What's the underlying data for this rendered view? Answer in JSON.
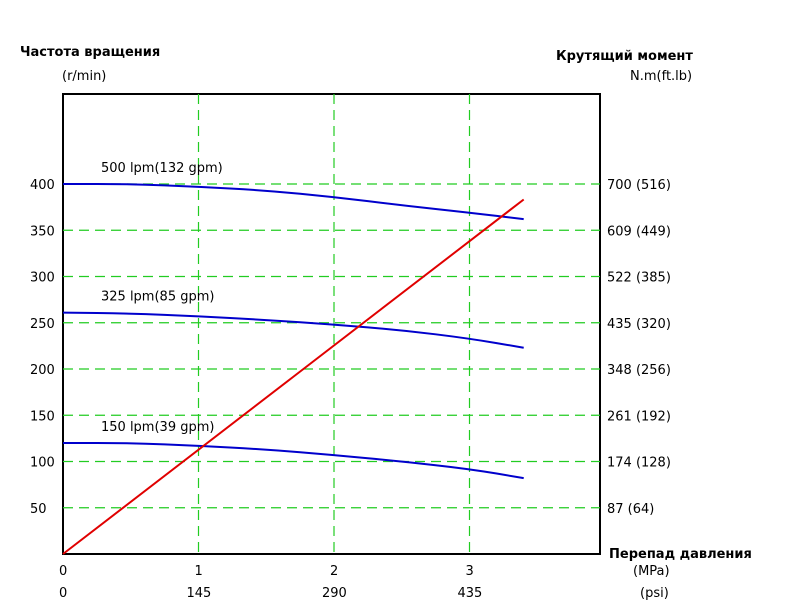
{
  "chart_data": {
    "type": "line",
    "left_axis": {
      "title": "Частота вращения",
      "unit": "(r/min)",
      "ticks": [
        50,
        100,
        150,
        200,
        250,
        300,
        350,
        400
      ],
      "range": [
        0,
        500
      ]
    },
    "right_axis": {
      "title": "Крутящий момент",
      "unit": "N.m(ft.lb)",
      "tick_labels": [
        "87 (64)",
        "174 (128)",
        "261 (192)",
        "348 (256)",
        "435 (320)",
        "522 (385)",
        "609 (449)",
        "700 (516)"
      ],
      "range": [
        0,
        870
      ]
    },
    "x_axis": {
      "title": "Перепад давления",
      "unit_primary": "(MPa)",
      "unit_secondary": "(psi)",
      "ticks_primary": [
        "0",
        "1",
        "2",
        "3"
      ],
      "ticks_secondary": [
        "0",
        "145",
        "290",
        "435"
      ],
      "range": [
        0,
        4
      ]
    },
    "grid": true,
    "series": [
      {
        "name": "500 lpm(132 gpm)",
        "axis": "left",
        "color": "#0000cc",
        "x": [
          0,
          0.5,
          1,
          1.5,
          2,
          2.5,
          3,
          3.4
        ],
        "values": [
          400,
          400,
          397,
          393,
          386,
          377,
          369,
          362
        ]
      },
      {
        "name": "325 lpm(85 gpm)",
        "axis": "left",
        "color": "#0000cc",
        "x": [
          0,
          0.5,
          1,
          1.5,
          2,
          2.5,
          3,
          3.4
        ],
        "values": [
          261,
          260,
          257,
          253,
          248,
          242,
          233,
          223
        ]
      },
      {
        "name": "150 lpm(39 gpm)",
        "axis": "left",
        "color": "#0000cc",
        "x": [
          0,
          0.5,
          1,
          1.5,
          2,
          2.5,
          3,
          3.4
        ],
        "values": [
          120,
          120,
          117,
          113,
          107,
          100,
          92,
          82
        ]
      },
      {
        "name": "",
        "axis": "right",
        "color": "#e00000",
        "x": [
          0,
          3.4
        ],
        "values": [
          0,
          667
        ]
      }
    ]
  }
}
